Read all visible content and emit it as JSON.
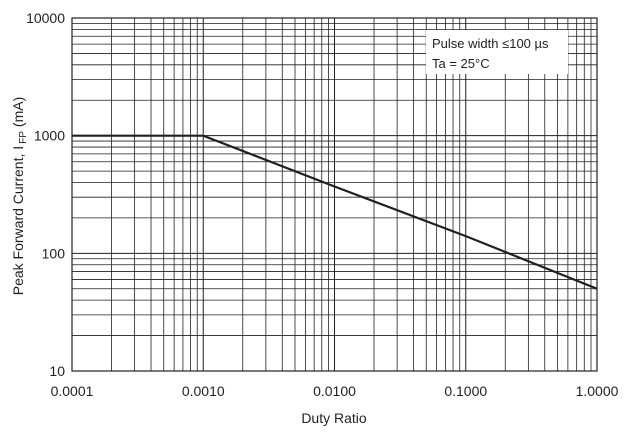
{
  "chart_data": {
    "type": "line",
    "x_scale": "log",
    "y_scale": "log",
    "xlim": [
      0.0001,
      1.0
    ],
    "ylim": [
      10,
      10000
    ],
    "grid": true,
    "xlabel": "Duty Ratio",
    "ylabel": {
      "main": "Peak Forward Current, I",
      "subscript": "FP",
      "unit": "(mA)"
    },
    "x_tick_labels": [
      "0.0001",
      "0.0010",
      "0.0100",
      "0.1000",
      "1.0000"
    ],
    "x_ticks": [
      0.0001,
      0.001,
      0.01,
      0.1,
      1.0
    ],
    "y_tick_labels": [
      "10",
      "100",
      "1000",
      "10000"
    ],
    "y_ticks": [
      10,
      100,
      1000,
      10000
    ],
    "annotations": [
      "Pulse width ≤100 µs",
      "Ta = 25°C"
    ],
    "series": [
      {
        "x": [
          0.0001,
          0.001,
          0.01,
          0.1,
          1.0
        ],
        "y": [
          1000,
          1000,
          370,
          140,
          50
        ]
      }
    ],
    "colors": {
      "line": "#231f20",
      "grid": "#231f20",
      "text": "#231f20"
    }
  }
}
